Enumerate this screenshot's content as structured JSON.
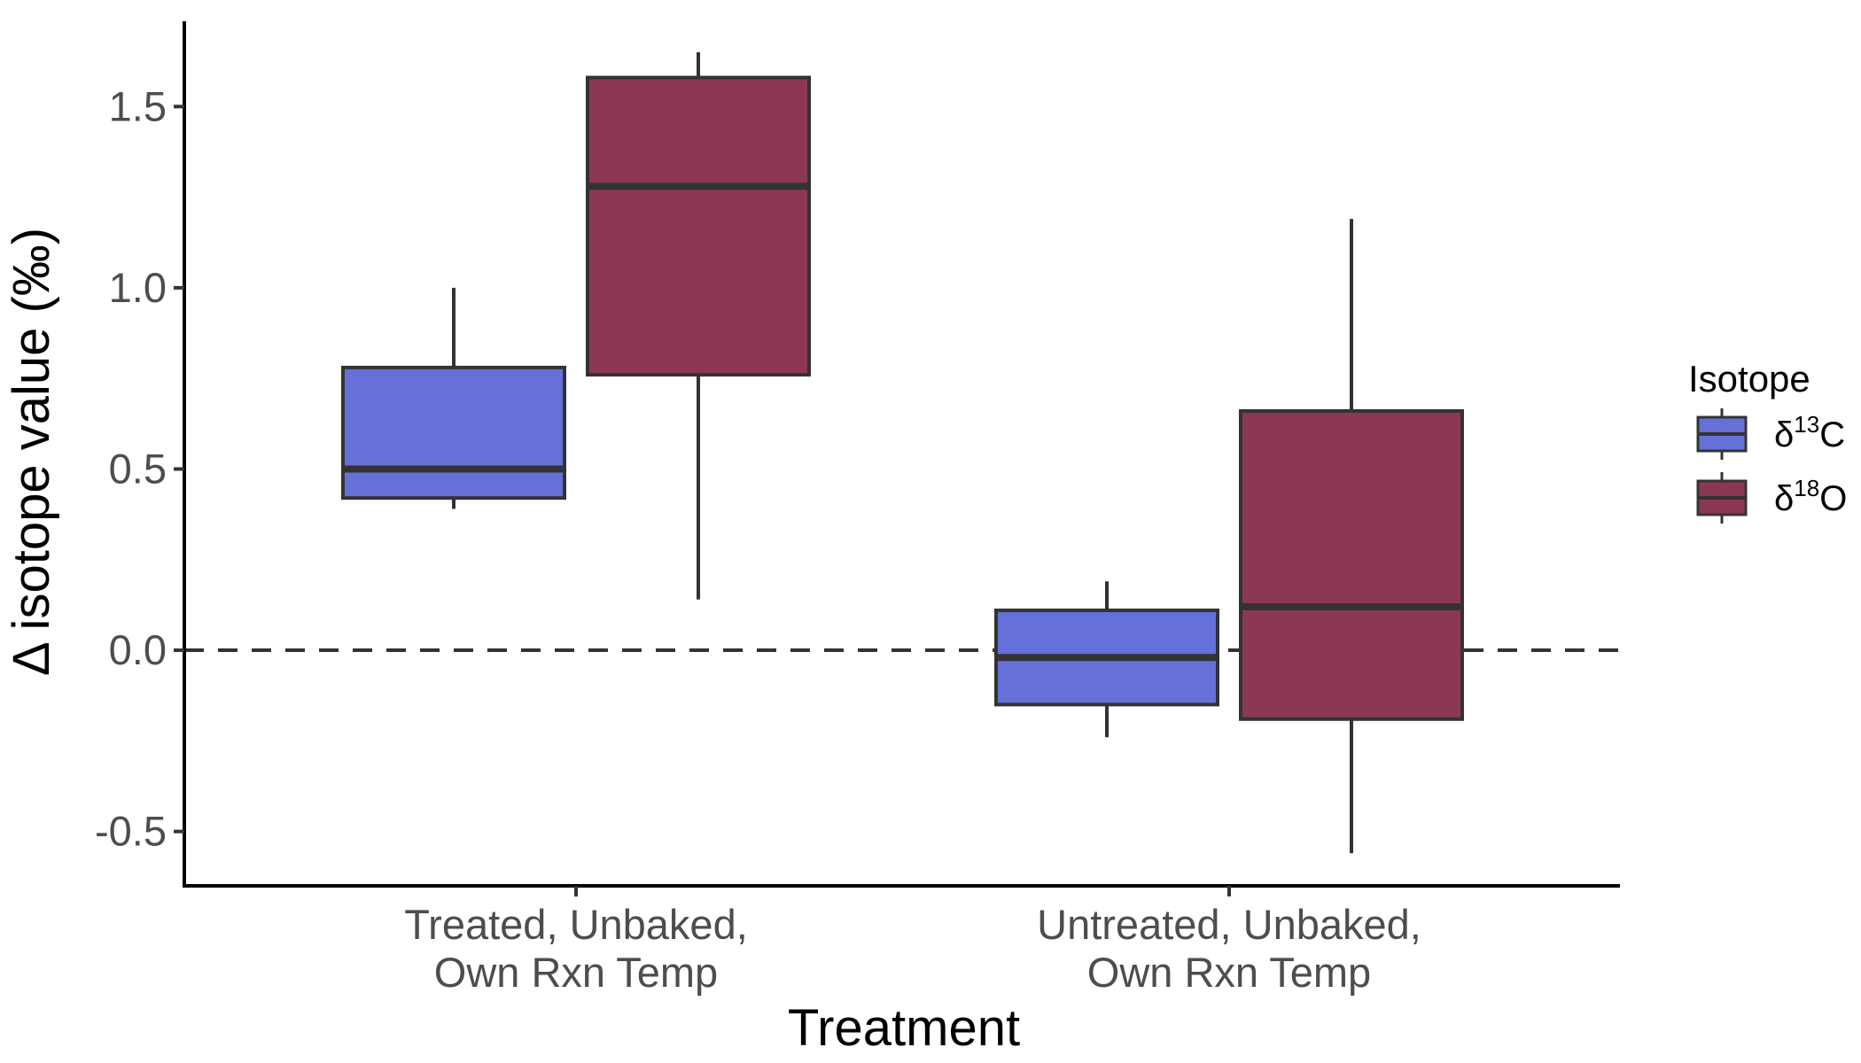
{
  "chart_data": {
    "type": "box",
    "xlabel": "Treatment",
    "ylabel": "Δ isotope value  (‰)",
    "ylim": [
      -0.65,
      1.75
    ],
    "yticks": [
      "1.5",
      "1.0",
      "0.5",
      "0.0",
      "-0.5"
    ],
    "ytick_values": [
      1.5,
      1.0,
      0.5,
      0.0,
      -0.5
    ],
    "reference_line": {
      "y": 0.0,
      "style": "dashed"
    },
    "categories": [
      [
        "Treated, Unbaked,",
        "Own Rxn Temp"
      ],
      [
        "Untreated, Unbaked,",
        "Own Rxn Temp"
      ]
    ],
    "legend": {
      "title": "Isotope",
      "position": "right"
    },
    "series": [
      {
        "base": "δ",
        "sup": "13",
        "elem": "C",
        "color": "#6670d9",
        "boxes": [
          {
            "min": 0.39,
            "q1": 0.42,
            "median": 0.5,
            "q3": 0.78,
            "max": 1.0
          },
          {
            "min": -0.24,
            "q1": -0.15,
            "median": -0.02,
            "q3": 0.11,
            "max": 0.19
          }
        ]
      },
      {
        "base": "δ",
        "sup": "18",
        "elem": "O",
        "color": "#8c3755",
        "boxes": [
          {
            "min": 0.14,
            "q1": 0.76,
            "median": 1.28,
            "q3": 1.58,
            "max": 1.65
          },
          {
            "min": -0.56,
            "q1": -0.19,
            "median": 0.12,
            "q3": 0.66,
            "max": 1.19
          }
        ]
      }
    ],
    "grid": false
  }
}
